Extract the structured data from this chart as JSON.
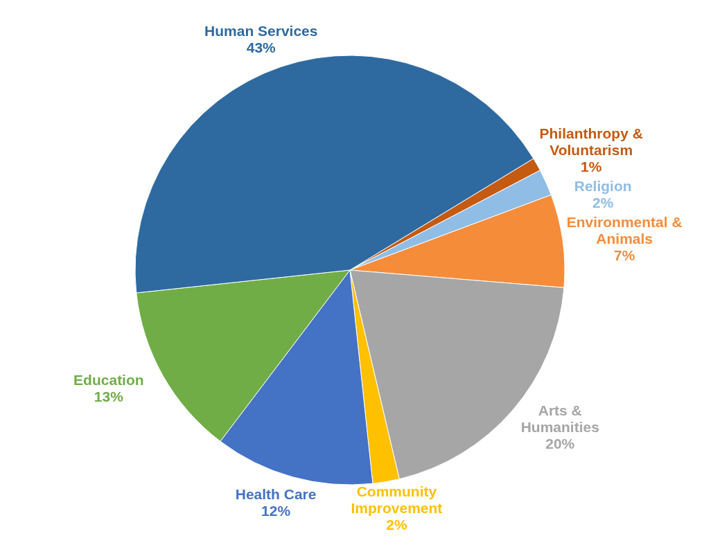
{
  "chart_data": {
    "type": "pie",
    "categories": [
      "Philanthropy & Voluntarism",
      "Religion",
      "Environmental & Animals",
      "Arts & Humanities",
      "Community Improvement",
      "Health Care",
      "Education",
      "Human Services"
    ],
    "values": [
      1,
      2,
      7,
      20,
      2,
      12,
      13,
      43
    ],
    "value_labels": [
      "1%",
      "2%",
      "7%",
      "20%",
      "2%",
      "12%",
      "13%",
      "43%"
    ],
    "colors": [
      "#c55a11",
      "#8fbde6",
      "#f58c3a",
      "#a6a6a6",
      "#ffc000",
      "#4472c4",
      "#70ad47",
      "#2e6aa0"
    ]
  }
}
